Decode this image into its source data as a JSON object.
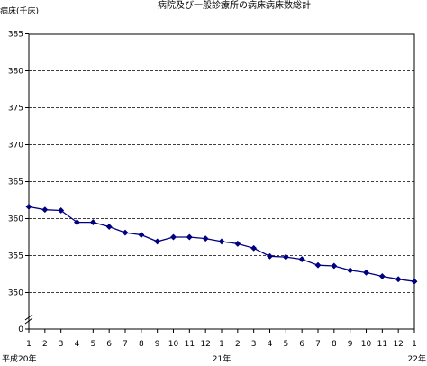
{
  "chart_data": {
    "type": "line",
    "title": "病院及び一般診療所の病床病床数総計",
    "ylabel": "病床(千床)",
    "ylim": [
      345,
      385
    ],
    "y_ticks": [
      0,
      350,
      355,
      360,
      365,
      370,
      375,
      380,
      385
    ],
    "y_axis_break": true,
    "grid": "horizontal dashed",
    "x_tick_labels": [
      "1",
      "2",
      "3",
      "4",
      "5",
      "6",
      "7",
      "8",
      "9",
      "10",
      "11",
      "12",
      "1",
      "2",
      "3",
      "4",
      "5",
      "6",
      "7",
      "8",
      "9",
      "10",
      "11",
      "12",
      "1"
    ],
    "x_year_labels": [
      {
        "label": "平成20年",
        "index": 0
      },
      {
        "label": "21年",
        "index": 12
      },
      {
        "label": "22年",
        "index": 24
      }
    ],
    "series": [
      {
        "color": "#000080",
        "x": [
          "平成20年1月",
          "2月",
          "3月",
          "4月",
          "5月",
          "6月",
          "7月",
          "8月",
          "9月",
          "10月",
          "11月",
          "12月",
          "21年1月",
          "2月",
          "3月",
          "4月",
          "5月",
          "6月",
          "7月",
          "8月",
          "9月",
          "10月",
          "11月",
          "12月",
          "22年1月"
        ],
        "values": [
          361.6,
          361.2,
          361.1,
          359.5,
          359.5,
          358.9,
          358.1,
          357.8,
          356.9,
          357.5,
          357.5,
          357.3,
          356.9,
          356.6,
          356.0,
          354.9,
          354.8,
          354.5,
          353.7,
          353.6,
          353.0,
          352.7,
          352.2,
          351.8,
          351.5
        ]
      }
    ]
  }
}
